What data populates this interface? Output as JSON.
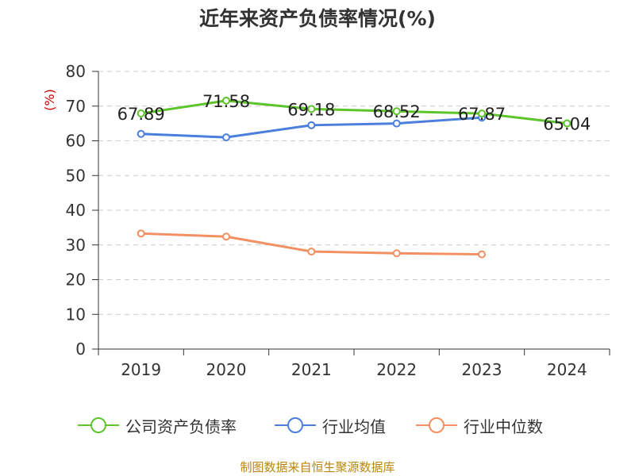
{
  "title": "近年来资产负债率情况(%)",
  "footer": "制图数据来自恒生聚源数据库",
  "chart_data": {
    "type": "line",
    "categories": [
      "2019",
      "2020",
      "2021",
      "2022",
      "2023",
      "2024"
    ],
    "ylabel": "(%)",
    "ylim": [
      0,
      80
    ],
    "yticks": [
      0,
      10,
      20,
      30,
      40,
      50,
      60,
      70,
      80
    ],
    "grid": true,
    "legend": "bottom",
    "series": [
      {
        "name": "公司资产负债率",
        "color": "#5ec42c",
        "values": [
          67.89,
          71.58,
          69.18,
          68.52,
          67.87,
          65.04
        ],
        "labels": [
          "67.89",
          "71.58",
          "69.18",
          "68.52",
          "67.87",
          "65.04"
        ]
      },
      {
        "name": "行业均值",
        "color": "#4a7fdc",
        "values": [
          62.0,
          61.0,
          64.5,
          65.0,
          66.7,
          null
        ]
      },
      {
        "name": "行业中位数",
        "color": "#f29061",
        "values": [
          33.3,
          32.4,
          28.1,
          27.6,
          27.3,
          null
        ]
      }
    ]
  }
}
